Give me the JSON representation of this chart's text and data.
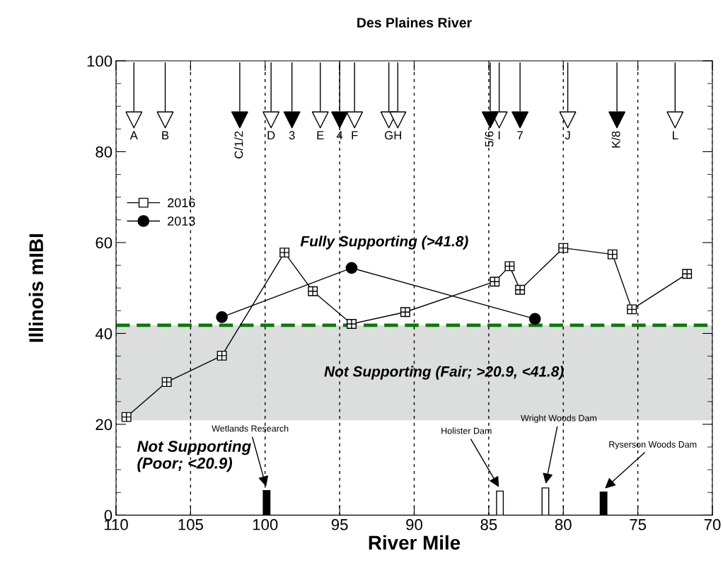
{
  "chart_data": {
    "type": "line",
    "title": "Des Plaines River",
    "xlabel": "River Mile",
    "ylabel": "Illinois mIBI",
    "xlim": [
      110,
      70
    ],
    "xticks": [
      110,
      105,
      100,
      95,
      90,
      85,
      80,
      75,
      70
    ],
    "ylim": [
      0,
      100
    ],
    "yticks": [
      0,
      20,
      40,
      60,
      80,
      100
    ],
    "grid": "x",
    "legend": "left",
    "series": [
      {
        "name": "2016",
        "color": "#000000",
        "marker": "square",
        "x": [
          109.3,
          106.6,
          102.9,
          98.7,
          96.8,
          94.2,
          90.6,
          84.6,
          83.6,
          82.9,
          80.0,
          76.7,
          75.4,
          71.7
        ],
        "values": [
          21.6,
          29.3,
          35.1,
          57.8,
          49.3,
          42.1,
          44.7,
          51.4,
          54.8,
          49.6,
          58.8,
          57.4,
          45.3,
          53.1
        ]
      },
      {
        "name": "2013",
        "color": "#000000",
        "marker": "circle",
        "x": [
          102.9,
          94.2,
          81.9
        ],
        "values": [
          43.6,
          54.4,
          43.2
        ]
      },
      {
        "type": "scatter",
        "color": "#ffffff",
        "marker": "triangle",
        "x": [
          108.8,
          106.7,
          99.6,
          96.3,
          94.0,
          91.7,
          91.1,
          84.3,
          79.7,
          72.5
        ],
        "values": [
          87,
          87,
          87,
          87,
          87,
          87,
          87,
          87,
          87,
          87
        ]
      },
      {
        "type": "scatter",
        "color": "#000000",
        "marker": "triangle",
        "x": [
          101.7,
          98.2,
          95.0,
          84.9,
          82.9,
          76.4
        ],
        "values": [
          87,
          87,
          87,
          87,
          87,
          87
        ]
      },
      {
        "type": "bar",
        "x": [
          99.9,
          84.25,
          81.2,
          77.3
        ],
        "values": [
          5.4,
          5.3,
          6.0,
          5.1
        ],
        "colors": [
          "#000000",
          "#ffffff",
          "#ffffff",
          "#000000"
        ]
      }
    ],
    "ref_lines": [
      {
        "axis": "y",
        "value": 41.8,
        "color": "#0a7a0a",
        "line_style": "dashed"
      }
    ],
    "bands": [
      {
        "axis": "y",
        "from": 20.9,
        "to": 41.8,
        "color": "#dcdddd",
        "label": "Not Supporting (Fair; >20.9, <41.8)"
      }
    ],
    "annotations": [
      "Fully Supporting (>41.8)",
      "Not Supporting\n(Poor; <20.9)",
      {
        "text": "Wetlands Research",
        "x": 99.9,
        "y": 5.4
      },
      {
        "text": "Holister Dam",
        "x": 84.25,
        "y": 5.3
      },
      {
        "text": "Wright Woods Dam",
        "x": 81.2,
        "y": 6.0
      },
      {
        "text": "Ryserson Woods Dam",
        "x": 77.3,
        "y": 5.1
      },
      {
        "text": "A",
        "x": 108.8,
        "y": 87
      },
      {
        "text": "B",
        "x": 106.7,
        "y": 87
      },
      {
        "text": "C/1/2",
        "x": 101.7,
        "y": 87
      },
      {
        "text": "D",
        "x": 99.6,
        "y": 87
      },
      {
        "text": "3",
        "x": 98.2,
        "y": 87
      },
      {
        "text": "E",
        "x": 96.3,
        "y": 87
      },
      {
        "text": "4",
        "x": 95.0,
        "y": 87
      },
      {
        "text": "F",
        "x": 94.0,
        "y": 87
      },
      {
        "text": "G",
        "x": 91.7,
        "y": 87
      },
      {
        "text": "H",
        "x": 91.1,
        "y": 87
      },
      {
        "text": "5/6",
        "x": 84.9,
        "y": 87
      },
      {
        "text": "I",
        "x": 84.3,
        "y": 87
      },
      {
        "text": "7",
        "x": 82.9,
        "y": 87
      },
      {
        "text": "J",
        "x": 79.7,
        "y": 87
      },
      {
        "text": "K/8",
        "x": 76.4,
        "y": 87
      },
      {
        "text": "L",
        "x": 72.5,
        "y": 87
      }
    ]
  }
}
